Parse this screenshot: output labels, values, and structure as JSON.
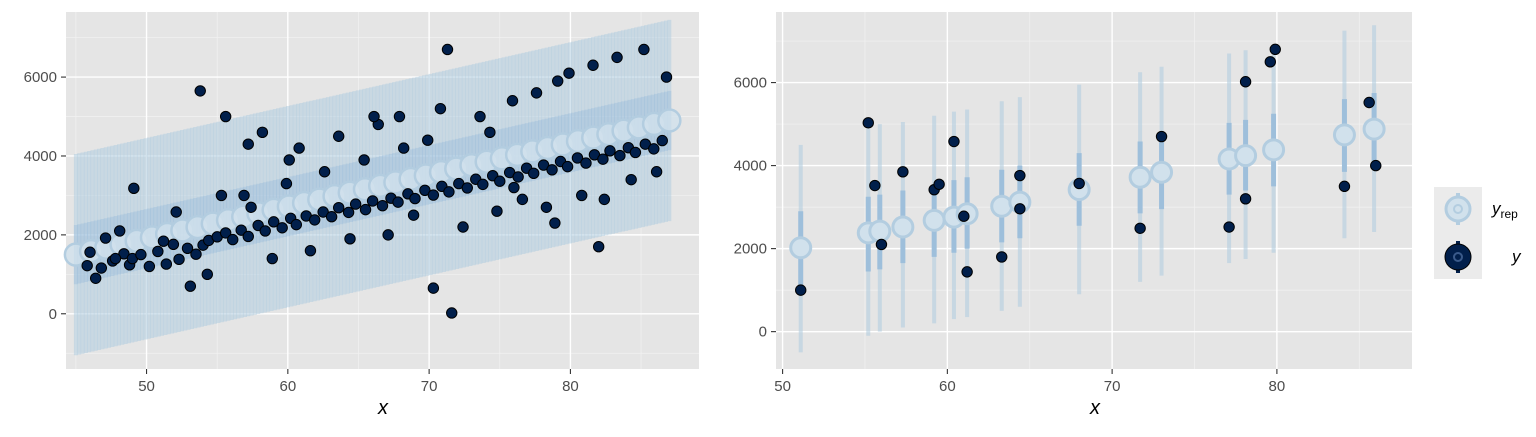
{
  "colors": {
    "panel_bg": "#e5e5e5",
    "grid_major": "#ffffff",
    "yrep_light": "#b3cde0",
    "yrep_mid": "#9ebfdb",
    "yrep_fill": "#d1e1ec",
    "y_point": "#011f4b",
    "y_edge": "#000000",
    "legend_bg": "#ebebeb"
  },
  "legend": {
    "yrep_label": "y",
    "yrep_sub": "rep",
    "y_label": "y"
  },
  "chart_data": [
    {
      "type": "scatter",
      "description_kind": "posterior predictive ribbon (intervals) vs observed points",
      "xlabel": "x",
      "ylabel": "",
      "xlim": [
        44.3,
        89.1
      ],
      "ylim": [
        -1400,
        7650
      ],
      "xticks": [
        50,
        60,
        70,
        80
      ],
      "yticks": [
        0,
        2000,
        4000,
        6000
      ],
      "grid": true,
      "interval_trend": {
        "x0": 45,
        "x1": 87,
        "median0": 1500,
        "median1": 4900,
        "outer_halfwidth": 2550,
        "inner_halfwidth": 750,
        "n_x": 500
      },
      "series": [
        {
          "name": "y",
          "points": [
            [
              45.8,
              1220
            ],
            [
              46.0,
              1560
            ],
            [
              46.8,
              1160
            ],
            [
              47.1,
              1920
            ],
            [
              47.6,
              1340
            ],
            [
              48.4,
              1520
            ],
            [
              48.8,
              1240
            ],
            [
              49.0,
              1400
            ],
            [
              49.6,
              1500
            ],
            [
              50.2,
              1200
            ],
            [
              50.8,
              1580
            ],
            [
              51.4,
              1260
            ],
            [
              51.9,
              1760
            ],
            [
              52.3,
              1380
            ],
            [
              52.9,
              1660
            ],
            [
              53.5,
              1510
            ],
            [
              54.0,
              1740
            ],
            [
              54.4,
              1860
            ],
            [
              55.0,
              1950
            ],
            [
              55.6,
              2050
            ],
            [
              56.1,
              1880
            ],
            [
              56.7,
              2120
            ],
            [
              57.2,
              1960
            ],
            [
              57.9,
              2240
            ],
            [
              58.4,
              2100
            ],
            [
              59.0,
              2330
            ],
            [
              59.6,
              2180
            ],
            [
              60.2,
              2420
            ],
            [
              60.6,
              2260
            ],
            [
              61.3,
              2480
            ],
            [
              61.9,
              2380
            ],
            [
              62.5,
              2580
            ],
            [
              63.1,
              2460
            ],
            [
              63.6,
              2690
            ],
            [
              64.3,
              2570
            ],
            [
              64.8,
              2780
            ],
            [
              65.5,
              2640
            ],
            [
              66.0,
              2860
            ],
            [
              66.7,
              2740
            ],
            [
              67.3,
              2930
            ],
            [
              67.8,
              2830
            ],
            [
              68.5,
              3040
            ],
            [
              69.0,
              2920
            ],
            [
              69.7,
              3130
            ],
            [
              70.3,
              3010
            ],
            [
              70.9,
              3230
            ],
            [
              71.4,
              3090
            ],
            [
              72.1,
              3300
            ],
            [
              72.7,
              3190
            ],
            [
              73.3,
              3410
            ],
            [
              73.8,
              3280
            ],
            [
              74.5,
              3500
            ],
            [
              75.0,
              3360
            ],
            [
              75.7,
              3580
            ],
            [
              76.3,
              3470
            ],
            [
              76.9,
              3690
            ],
            [
              77.4,
              3560
            ],
            [
              78.1,
              3770
            ],
            [
              78.7,
              3650
            ],
            [
              79.3,
              3860
            ],
            [
              79.8,
              3730
            ],
            [
              80.5,
              3950
            ],
            [
              81.1,
              3820
            ],
            [
              81.7,
              4030
            ],
            [
              82.3,
              3920
            ],
            [
              82.8,
              4130
            ],
            [
              83.5,
              4010
            ],
            [
              84.1,
              4210
            ],
            [
              84.6,
              4090
            ],
            [
              85.3,
              4300
            ],
            [
              85.9,
              4180
            ],
            [
              86.5,
              4390
            ],
            [
              46.4,
              900
            ],
            [
              48.1,
              2100
            ],
            [
              49.1,
              3180
            ],
            [
              51.2,
              1840
            ],
            [
              52.1,
              2580
            ],
            [
              53.1,
              700
            ],
            [
              54.3,
              1000
            ],
            [
              55.3,
              3000
            ],
            [
              55.6,
              5000
            ],
            [
              56.9,
              3000
            ],
            [
              57.4,
              2700
            ],
            [
              58.2,
              4600
            ],
            [
              58.9,
              1400
            ],
            [
              59.9,
              3300
            ],
            [
              60.8,
              4200
            ],
            [
              61.6,
              1600
            ],
            [
              62.6,
              3600
            ],
            [
              63.6,
              4500
            ],
            [
              64.4,
              1900
            ],
            [
              65.4,
              3900
            ],
            [
              66.4,
              4800
            ],
            [
              67.1,
              2000
            ],
            [
              67.9,
              5000
            ],
            [
              68.9,
              2500
            ],
            [
              69.9,
              4400
            ],
            [
              70.8,
              5200
            ],
            [
              71.6,
              20
            ],
            [
              72.4,
              2200
            ],
            [
              73.6,
              5000
            ],
            [
              74.3,
              4600
            ],
            [
              74.8,
              2600
            ],
            [
              75.9,
              5400
            ],
            [
              76.6,
              2900
            ],
            [
              77.6,
              5600
            ],
            [
              78.3,
              2700
            ],
            [
              79.1,
              5900
            ],
            [
              79.9,
              6100
            ],
            [
              80.8,
              3000
            ],
            [
              81.6,
              6300
            ],
            [
              82.4,
              2900
            ],
            [
              83.3,
              6500
            ],
            [
              84.3,
              3400
            ],
            [
              85.2,
              6700
            ],
            [
              86.1,
              3600
            ],
            [
              86.8,
              6000
            ],
            [
              53.8,
              5650
            ],
            [
              71.3,
              6700
            ],
            [
              70.3,
              650
            ],
            [
              82.0,
              1700
            ],
            [
              78.9,
              2300
            ],
            [
              76.0,
              3200
            ],
            [
              68.2,
              4200
            ],
            [
              66.1,
              5000
            ],
            [
              60.1,
              3900
            ],
            [
              57.2,
              4300
            ],
            [
              47.8,
              1400
            ]
          ]
        }
      ]
    },
    {
      "type": "scatter",
      "description_kind": "posterior predictive intervals per observation vs observed points",
      "xlabel": "x",
      "ylabel": "",
      "xlim": [
        49.6,
        88.2
      ],
      "ylim": [
        -900,
        7700
      ],
      "xticks": [
        50,
        60,
        70,
        80
      ],
      "yticks": [
        0,
        2000,
        4000,
        6000
      ],
      "grid": true,
      "series": [
        {
          "name": "y_rep",
          "intervals": [
            [
              51.1,
              2020,
              1100,
              2900,
              -500,
              4500
            ],
            [
              55.2,
              2380,
              1450,
              3250,
              -100,
              4900
            ],
            [
              55.9,
              2420,
              1500,
              3300,
              0,
              5000
            ],
            [
              57.3,
              2520,
              1650,
              3400,
              100,
              5050
            ],
            [
              59.2,
              2680,
              1800,
              3550,
              200,
              5200
            ],
            [
              60.4,
              2760,
              1900,
              3650,
              300,
              5300
            ],
            [
              61.2,
              2840,
              2000,
              3720,
              350,
              5350
            ],
            [
              63.3,
              3020,
              2150,
              3900,
              500,
              5550
            ],
            [
              64.4,
              3120,
              2250,
              4000,
              600,
              5650
            ],
            [
              68.0,
              3420,
              2550,
              4300,
              900,
              5950
            ],
            [
              71.7,
              3720,
              2850,
              4580,
              1200,
              6250
            ],
            [
              73.0,
              3840,
              2950,
              4700,
              1350,
              6380
            ],
            [
              77.1,
              4160,
              3300,
              5030,
              1650,
              6700
            ],
            [
              78.1,
              4240,
              3400,
              5100,
              1750,
              6780
            ],
            [
              79.8,
              4380,
              3500,
              5250,
              1900,
              6920
            ],
            [
              84.1,
              4740,
              3850,
              5600,
              2250,
              7250
            ],
            [
              85.9,
              4880,
              4000,
              5750,
              2400,
              7380
            ]
          ]
        },
        {
          "name": "y",
          "points": [
            [
              51.1,
              1000
            ],
            [
              55.2,
              5030
            ],
            [
              55.6,
              3520
            ],
            [
              56.0,
              2100
            ],
            [
              57.3,
              3850
            ],
            [
              59.2,
              3420
            ],
            [
              59.5,
              3550
            ],
            [
              60.4,
              4580
            ],
            [
              61.0,
              2780
            ],
            [
              61.2,
              1440
            ],
            [
              63.3,
              1800
            ],
            [
              64.4,
              3760
            ],
            [
              64.4,
              2960
            ],
            [
              68.0,
              3570
            ],
            [
              71.7,
              2490
            ],
            [
              73.0,
              4700
            ],
            [
              77.1,
              2520
            ],
            [
              78.1,
              6020
            ],
            [
              78.1,
              3200
            ],
            [
              79.6,
              6500
            ],
            [
              79.9,
              6800
            ],
            [
              84.1,
              3500
            ],
            [
              85.6,
              5520
            ],
            [
              86.0,
              4000
            ]
          ]
        }
      ]
    }
  ]
}
